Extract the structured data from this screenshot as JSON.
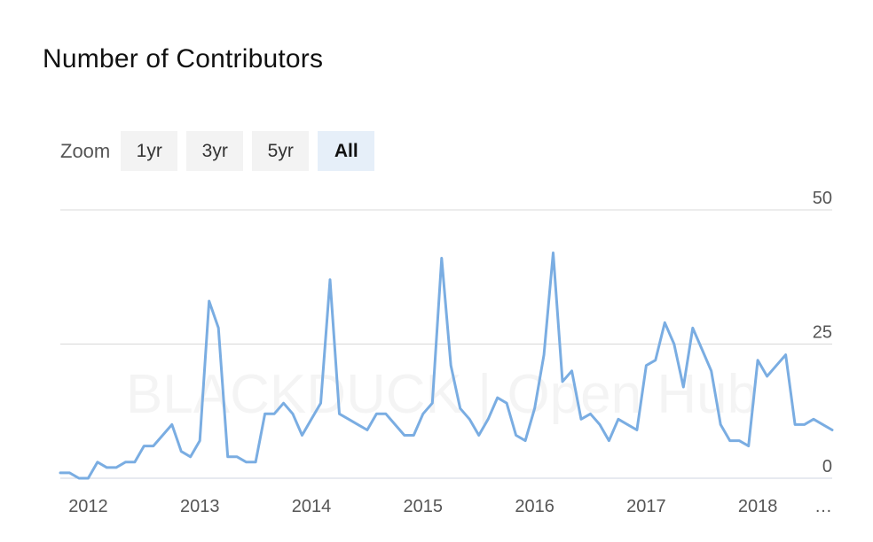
{
  "title": "Number of Contributors",
  "zoom": {
    "label": "Zoom",
    "buttons": [
      {
        "label": "1yr",
        "active": false
      },
      {
        "label": "3yr",
        "active": false
      },
      {
        "label": "5yr",
        "active": false
      },
      {
        "label": "All",
        "active": true
      }
    ]
  },
  "watermark": "BLACKDUCK | Open Hub",
  "colors": {
    "line": "#7aade2",
    "grid": "#d8d8d8",
    "axis_text": "#555555",
    "zoom_active": "#e6eff9",
    "zoom_inactive": "#f3f3f3"
  },
  "chart_data": {
    "type": "line",
    "title": "Number of Contributors",
    "xlabel": "",
    "ylabel": "",
    "ylim": [
      0,
      50
    ],
    "y_ticks": [
      0,
      25,
      50
    ],
    "x_ticks": [
      "2012",
      "2013",
      "2014",
      "2015",
      "2016",
      "2017",
      "2018",
      "…"
    ],
    "grid": true,
    "series": [
      {
        "values": [
          [
            "2011-10",
            1
          ],
          [
            "2011-11",
            1
          ],
          [
            "2011-12",
            0
          ],
          [
            "2012-01",
            0
          ],
          [
            "2012-02",
            3
          ],
          [
            "2012-03",
            2
          ],
          [
            "2012-04",
            2
          ],
          [
            "2012-05",
            3
          ],
          [
            "2012-06",
            3
          ],
          [
            "2012-07",
            6
          ],
          [
            "2012-08",
            6
          ],
          [
            "2012-09",
            8
          ],
          [
            "2012-10",
            10
          ],
          [
            "2012-11",
            5
          ],
          [
            "2012-12",
            4
          ],
          [
            "2013-01",
            7
          ],
          [
            "2013-02",
            33
          ],
          [
            "2013-03",
            28
          ],
          [
            "2013-04",
            4
          ],
          [
            "2013-05",
            4
          ],
          [
            "2013-06",
            3
          ],
          [
            "2013-07",
            3
          ],
          [
            "2013-08",
            12
          ],
          [
            "2013-09",
            12
          ],
          [
            "2013-10",
            14
          ],
          [
            "2013-11",
            12
          ],
          [
            "2013-12",
            8
          ],
          [
            "2014-01",
            11
          ],
          [
            "2014-02",
            14
          ],
          [
            "2014-03",
            37
          ],
          [
            "2014-04",
            12
          ],
          [
            "2014-05",
            11
          ],
          [
            "2014-06",
            10
          ],
          [
            "2014-07",
            9
          ],
          [
            "2014-08",
            12
          ],
          [
            "2014-09",
            12
          ],
          [
            "2014-10",
            10
          ],
          [
            "2014-11",
            8
          ],
          [
            "2014-12",
            8
          ],
          [
            "2015-01",
            12
          ],
          [
            "2015-02",
            14
          ],
          [
            "2015-03",
            41
          ],
          [
            "2015-04",
            21
          ],
          [
            "2015-05",
            13
          ],
          [
            "2015-06",
            11
          ],
          [
            "2015-07",
            8
          ],
          [
            "2015-08",
            11
          ],
          [
            "2015-09",
            15
          ],
          [
            "2015-10",
            14
          ],
          [
            "2015-11",
            8
          ],
          [
            "2015-12",
            7
          ],
          [
            "2016-01",
            13
          ],
          [
            "2016-02",
            23
          ],
          [
            "2016-03",
            42
          ],
          [
            "2016-04",
            18
          ],
          [
            "2016-05",
            20
          ],
          [
            "2016-06",
            11
          ],
          [
            "2016-07",
            12
          ],
          [
            "2016-08",
            10
          ],
          [
            "2016-09",
            7
          ],
          [
            "2016-10",
            11
          ],
          [
            "2016-11",
            10
          ],
          [
            "2016-12",
            9
          ],
          [
            "2017-01",
            21
          ],
          [
            "2017-02",
            22
          ],
          [
            "2017-03",
            29
          ],
          [
            "2017-04",
            25
          ],
          [
            "2017-05",
            17
          ],
          [
            "2017-06",
            28
          ],
          [
            "2017-07",
            24
          ],
          [
            "2017-08",
            20
          ],
          [
            "2017-09",
            10
          ],
          [
            "2017-10",
            7
          ],
          [
            "2017-11",
            7
          ],
          [
            "2017-12",
            6
          ],
          [
            "2018-01",
            22
          ],
          [
            "2018-02",
            19
          ],
          [
            "2018-03",
            21
          ],
          [
            "2018-04",
            23
          ],
          [
            "2018-05",
            10
          ],
          [
            "2018-06",
            10
          ],
          [
            "2018-07",
            11
          ],
          [
            "2018-08",
            10
          ],
          [
            "2018-09",
            9
          ]
        ]
      }
    ]
  }
}
